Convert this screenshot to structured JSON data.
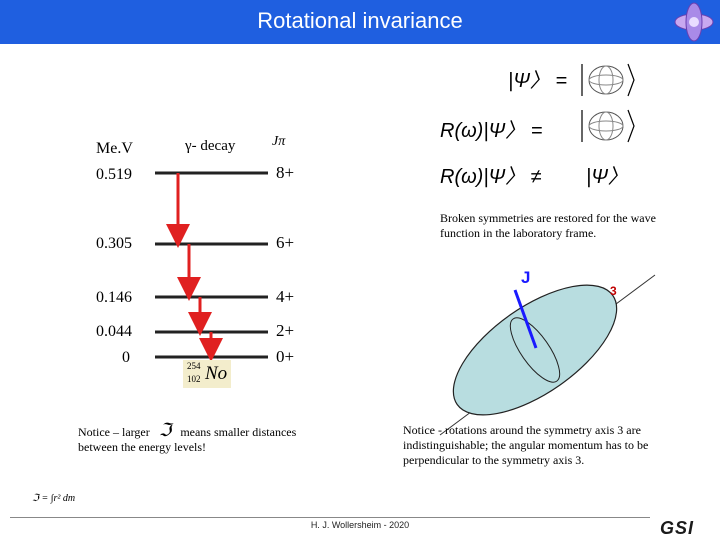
{
  "title": "Rotational invariance",
  "units_label": "Me.V",
  "decay_label": "γ- decay",
  "spin_header": "Jπ",
  "levels": [
    {
      "energy": "0.519",
      "spin": "8+"
    },
    {
      "energy": "0.305",
      "spin": "6+"
    },
    {
      "energy": "0.146",
      "spin": "4+"
    },
    {
      "energy": "0.044",
      "spin": "2+"
    },
    {
      "energy": "0",
      "spin": "0+"
    }
  ],
  "nucleus": {
    "mass": "254",
    "charge": "102",
    "symbol": "No"
  },
  "equations": {
    "eq1_left": "|Ψ〉 =",
    "eq2_left": "R(ω)|Ψ〉 =",
    "eq3_left": "R(ω)|Ψ〉 ≠",
    "eq3_right": "|Ψ〉"
  },
  "broken_note": "Broken symmetries are restored for the wave function in the laboratory frame.",
  "ellipsoid": {
    "j_label": "J",
    "axis_label": "3"
  },
  "notice_left_1": "Notice – larger",
  "notice_left_2": "means smaller distances between the energy levels!",
  "moment_symbol": "ℑ",
  "formula": "ℑ = ∫r² dm",
  "notice_right": "Notice - rotations around the symmetry axis 3 are indistinguishable; the angular momentum has to be perpendicular to the symmetry axis 3.",
  "author": "H. J. Wollersheim - 2020",
  "logo_text": "GSI",
  "colors": {
    "title_bar": "#1f5fe0",
    "arrow": "#e02020",
    "j_vector": "#1a1aff",
    "ellipsoid": "#b8dde0",
    "axis_label": "#c00000"
  }
}
